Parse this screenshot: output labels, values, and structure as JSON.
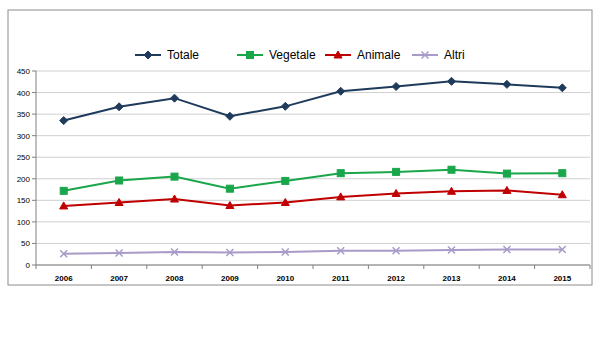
{
  "chart_data": {
    "type": "line",
    "categories": [
      "2006",
      "2007",
      "2008",
      "2009",
      "2010",
      "2011",
      "2012",
      "2013",
      "2014",
      "2015"
    ],
    "series": [
      {
        "name": "Totale",
        "color": "#1f3b5c",
        "marker": "diamond",
        "values": [
          335,
          367,
          387,
          345,
          368,
          403,
          414,
          426,
          419,
          411
        ]
      },
      {
        "name": "Vegetale",
        "color": "#1aa64a",
        "marker": "square",
        "values": [
          172,
          196,
          205,
          177,
          195,
          213,
          216,
          221,
          212,
          213
        ]
      },
      {
        "name": "Animale",
        "color": "#c00000",
        "marker": "triangle",
        "values": [
          137,
          145,
          153,
          138,
          145,
          158,
          166,
          171,
          173,
          163
        ]
      },
      {
        "name": "Altri",
        "color": "#a99bc8",
        "marker": "x",
        "values": [
          26,
          28,
          30,
          29,
          30,
          33,
          33,
          35,
          36,
          36
        ]
      }
    ],
    "ylim": [
      0,
      450
    ],
    "yticks": [
      0,
      50,
      100,
      150,
      200,
      250,
      300,
      350,
      400,
      450
    ],
    "grid": true,
    "legend": "top"
  }
}
